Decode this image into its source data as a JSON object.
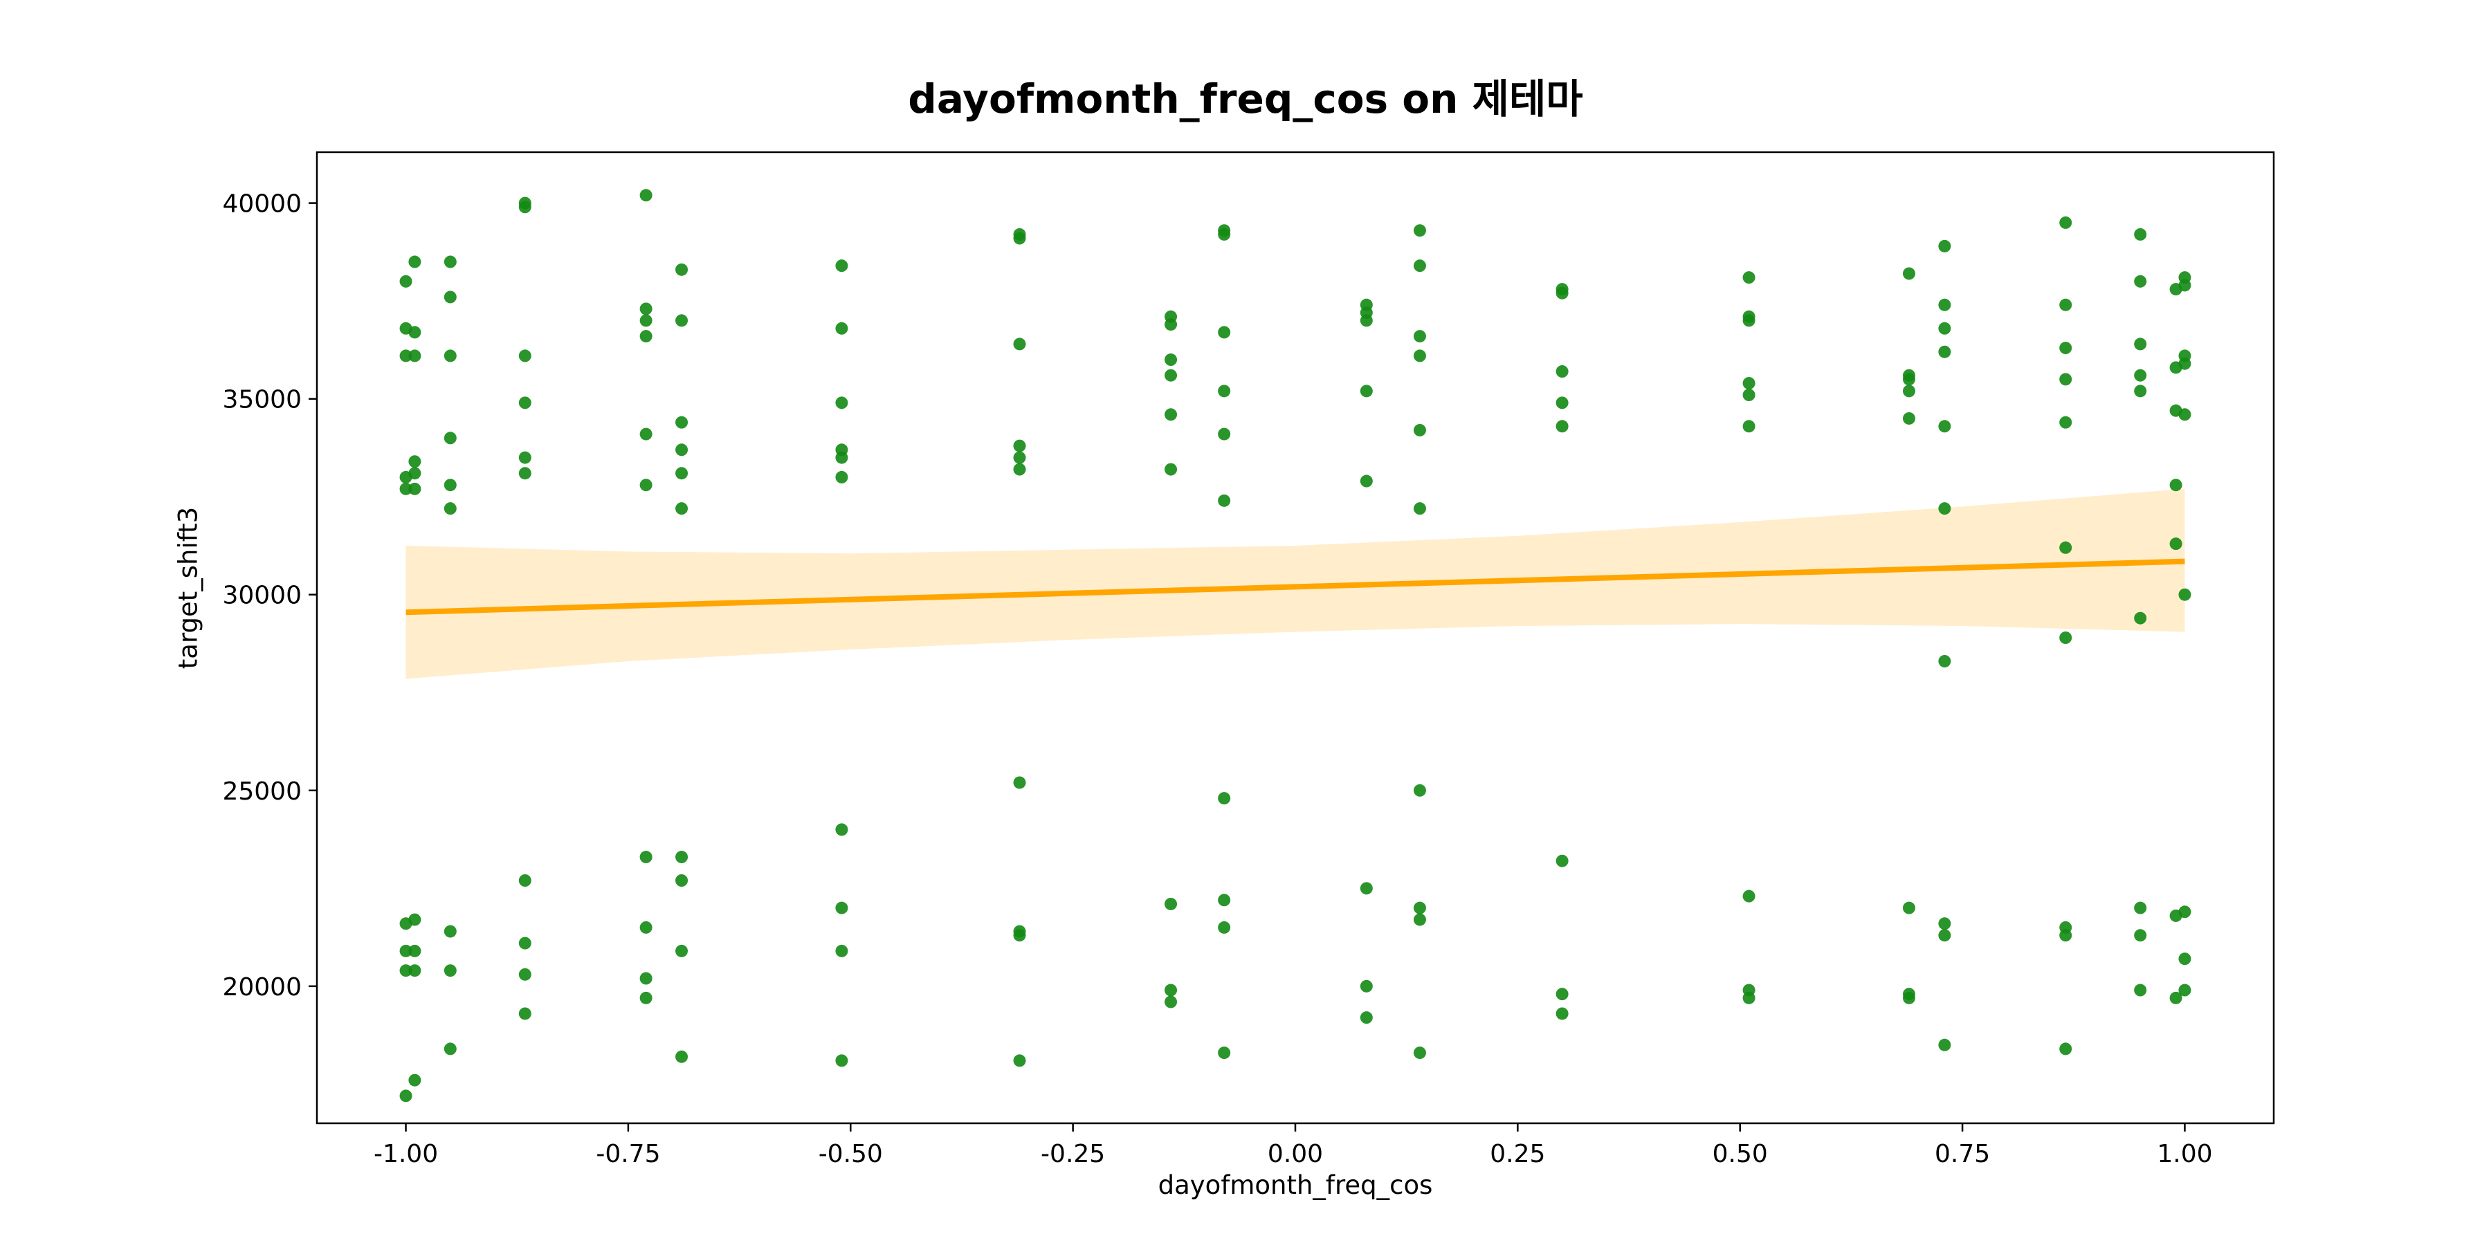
{
  "chart_data": {
    "type": "scatter",
    "title": "dayofmonth_freq_cos on 제테마",
    "xlabel": "dayofmonth_freq_cos",
    "ylabel": "target_shift3",
    "xlim": [
      -1.1,
      1.1
    ],
    "ylim": [
      16500,
      41300
    ],
    "xticks": [
      -1.0,
      -0.75,
      -0.5,
      -0.25,
      0.0,
      0.25,
      0.5,
      0.75,
      1.0
    ],
    "xtick_labels": [
      "-1.00",
      "-0.75",
      "-0.50",
      "-0.25",
      "0.00",
      "0.25",
      "0.50",
      "0.75",
      "1.00"
    ],
    "yticks": [
      20000,
      25000,
      30000,
      35000,
      40000
    ],
    "ytick_labels": [
      "20000",
      "25000",
      "30000",
      "35000",
      "40000"
    ],
    "grid": false,
    "point_color": "#138a13",
    "line_color": "#ffa500",
    "band_color": "#ffedcc",
    "series": [
      {
        "kind": "points",
        "points": [
          [
            -1.0,
            38000
          ],
          [
            -1.0,
            36800
          ],
          [
            -1.0,
            36100
          ],
          [
            -1.0,
            33000
          ],
          [
            -1.0,
            32700
          ],
          [
            -1.0,
            21600
          ],
          [
            -1.0,
            20900
          ],
          [
            -1.0,
            20400
          ],
          [
            -1.0,
            17200
          ],
          [
            -0.99,
            38500
          ],
          [
            -0.99,
            36700
          ],
          [
            -0.99,
            36100
          ],
          [
            -0.99,
            33400
          ],
          [
            -0.99,
            33100
          ],
          [
            -0.99,
            32700
          ],
          [
            -0.99,
            21700
          ],
          [
            -0.99,
            20900
          ],
          [
            -0.99,
            20400
          ],
          [
            -0.99,
            17600
          ],
          [
            -0.95,
            38500
          ],
          [
            -0.95,
            37600
          ],
          [
            -0.95,
            36100
          ],
          [
            -0.95,
            34000
          ],
          [
            -0.95,
            32800
          ],
          [
            -0.95,
            32200
          ],
          [
            -0.95,
            21400
          ],
          [
            -0.95,
            20400
          ],
          [
            -0.95,
            18400
          ],
          [
            -0.866,
            39900
          ],
          [
            -0.866,
            40000
          ],
          [
            -0.866,
            36100
          ],
          [
            -0.866,
            34900
          ],
          [
            -0.866,
            33500
          ],
          [
            -0.866,
            33100
          ],
          [
            -0.866,
            22700
          ],
          [
            -0.866,
            21100
          ],
          [
            -0.866,
            20300
          ],
          [
            -0.866,
            19300
          ],
          [
            -0.73,
            40200
          ],
          [
            -0.73,
            37300
          ],
          [
            -0.73,
            37000
          ],
          [
            -0.73,
            36600
          ],
          [
            -0.73,
            34100
          ],
          [
            -0.73,
            32800
          ],
          [
            -0.73,
            23300
          ],
          [
            -0.73,
            21500
          ],
          [
            -0.73,
            20200
          ],
          [
            -0.73,
            19700
          ],
          [
            -0.69,
            38300
          ],
          [
            -0.69,
            37000
          ],
          [
            -0.69,
            34400
          ],
          [
            -0.69,
            33700
          ],
          [
            -0.69,
            33100
          ],
          [
            -0.69,
            32200
          ],
          [
            -0.69,
            23300
          ],
          [
            -0.69,
            22700
          ],
          [
            -0.69,
            20900
          ],
          [
            -0.69,
            18200
          ],
          [
            -0.51,
            38400
          ],
          [
            -0.51,
            36800
          ],
          [
            -0.51,
            34900
          ],
          [
            -0.51,
            33700
          ],
          [
            -0.51,
            33500
          ],
          [
            -0.51,
            33000
          ],
          [
            -0.51,
            24000
          ],
          [
            -0.51,
            22000
          ],
          [
            -0.51,
            20900
          ],
          [
            -0.51,
            18100
          ],
          [
            -0.31,
            39200
          ],
          [
            -0.31,
            39100
          ],
          [
            -0.31,
            36400
          ],
          [
            -0.31,
            33800
          ],
          [
            -0.31,
            33500
          ],
          [
            -0.31,
            33200
          ],
          [
            -0.31,
            25200
          ],
          [
            -0.31,
            21400
          ],
          [
            -0.31,
            21300
          ],
          [
            -0.31,
            18100
          ],
          [
            -0.14,
            37100
          ],
          [
            -0.14,
            36900
          ],
          [
            -0.14,
            36000
          ],
          [
            -0.14,
            35600
          ],
          [
            -0.14,
            34600
          ],
          [
            -0.14,
            33200
          ],
          [
            -0.14,
            22100
          ],
          [
            -0.14,
            19900
          ],
          [
            -0.14,
            19600
          ],
          [
            -0.08,
            39300
          ],
          [
            -0.08,
            39200
          ],
          [
            -0.08,
            36700
          ],
          [
            -0.08,
            35200
          ],
          [
            -0.08,
            34100
          ],
          [
            -0.08,
            32400
          ],
          [
            -0.08,
            24800
          ],
          [
            -0.08,
            22200
          ],
          [
            -0.08,
            21500
          ],
          [
            -0.08,
            18300
          ],
          [
            0.08,
            37400
          ],
          [
            0.08,
            37200
          ],
          [
            0.08,
            37000
          ],
          [
            0.08,
            35200
          ],
          [
            0.08,
            32900
          ],
          [
            0.08,
            22500
          ],
          [
            0.08,
            20000
          ],
          [
            0.08,
            19200
          ],
          [
            0.14,
            39300
          ],
          [
            0.14,
            38400
          ],
          [
            0.14,
            36600
          ],
          [
            0.14,
            36100
          ],
          [
            0.14,
            34200
          ],
          [
            0.14,
            32200
          ],
          [
            0.14,
            25000
          ],
          [
            0.14,
            22000
          ],
          [
            0.14,
            21700
          ],
          [
            0.14,
            18300
          ],
          [
            0.3,
            37800
          ],
          [
            0.3,
            37700
          ],
          [
            0.3,
            35700
          ],
          [
            0.3,
            34900
          ],
          [
            0.3,
            34300
          ],
          [
            0.3,
            23200
          ],
          [
            0.3,
            19800
          ],
          [
            0.3,
            19300
          ],
          [
            0.51,
            38100
          ],
          [
            0.51,
            37100
          ],
          [
            0.51,
            37000
          ],
          [
            0.51,
            35400
          ],
          [
            0.51,
            35100
          ],
          [
            0.51,
            34300
          ],
          [
            0.51,
            22300
          ],
          [
            0.51,
            19900
          ],
          [
            0.51,
            19700
          ],
          [
            0.69,
            38200
          ],
          [
            0.69,
            35600
          ],
          [
            0.69,
            35500
          ],
          [
            0.69,
            35200
          ],
          [
            0.69,
            34500
          ],
          [
            0.69,
            22000
          ],
          [
            0.69,
            19800
          ],
          [
            0.69,
            19700
          ],
          [
            0.73,
            38900
          ],
          [
            0.73,
            37400
          ],
          [
            0.73,
            36800
          ],
          [
            0.73,
            36200
          ],
          [
            0.73,
            34300
          ],
          [
            0.73,
            32200
          ],
          [
            0.73,
            28300
          ],
          [
            0.73,
            21600
          ],
          [
            0.73,
            21300
          ],
          [
            0.73,
            18500
          ],
          [
            0.866,
            39500
          ],
          [
            0.866,
            37400
          ],
          [
            0.866,
            36300
          ],
          [
            0.866,
            35500
          ],
          [
            0.866,
            34400
          ],
          [
            0.866,
            31200
          ],
          [
            0.866,
            28900
          ],
          [
            0.866,
            21500
          ],
          [
            0.866,
            21300
          ],
          [
            0.866,
            18400
          ],
          [
            0.95,
            39200
          ],
          [
            0.95,
            38000
          ],
          [
            0.95,
            36400
          ],
          [
            0.95,
            35600
          ],
          [
            0.95,
            35200
          ],
          [
            0.95,
            29400
          ],
          [
            0.95,
            22000
          ],
          [
            0.95,
            21300
          ],
          [
            0.95,
            19900
          ],
          [
            0.99,
            37800
          ],
          [
            0.99,
            35800
          ],
          [
            0.99,
            34700
          ],
          [
            0.99,
            32800
          ],
          [
            0.99,
            31300
          ],
          [
            0.99,
            21800
          ],
          [
            0.99,
            19700
          ],
          [
            1.0,
            38100
          ],
          [
            1.0,
            37900
          ],
          [
            1.0,
            36100
          ],
          [
            1.0,
            35900
          ],
          [
            1.0,
            34600
          ],
          [
            1.0,
            30000
          ],
          [
            1.0,
            21900
          ],
          [
            1.0,
            20700
          ],
          [
            1.0,
            19900
          ]
        ]
      },
      {
        "kind": "regression",
        "x": [
          -1.0,
          1.0
        ],
        "y": [
          29550,
          30850
        ]
      },
      {
        "kind": "confidence-band",
        "x": [
          -1.0,
          -0.75,
          -0.5,
          -0.25,
          0.0,
          0.25,
          0.5,
          0.75,
          1.0
        ],
        "lower": [
          27850,
          28300,
          28600,
          28850,
          29050,
          29200,
          29250,
          29200,
          29050
        ],
        "upper": [
          31250,
          31100,
          31050,
          31150,
          31250,
          31500,
          31850,
          32250,
          32700
        ]
      }
    ]
  }
}
